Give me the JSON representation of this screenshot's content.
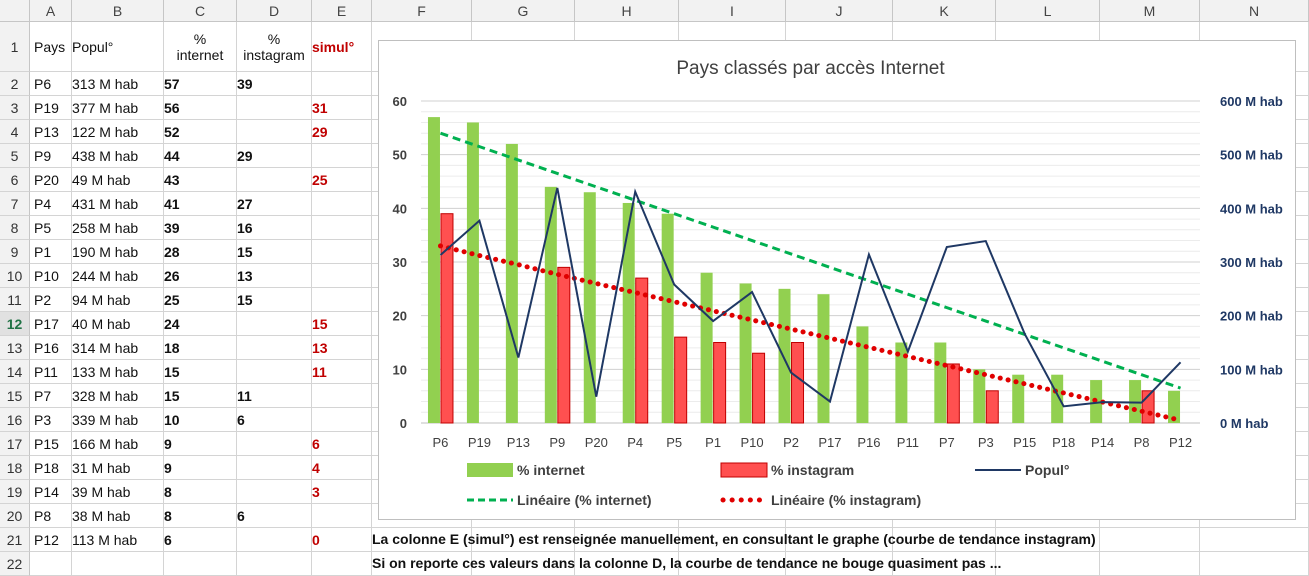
{
  "columns": [
    "A",
    "B",
    "C",
    "D",
    "E",
    "F",
    "G",
    "H",
    "I",
    "J",
    "K",
    "L",
    "M",
    "N"
  ],
  "selected_row": 12,
  "headers": {
    "A": "Pays",
    "B": "Popul°",
    "C": "%\ninternet",
    "D": "%\ninstagram",
    "E": "simul°"
  },
  "rows": [
    {
      "n": 2,
      "pays": "P6",
      "pop": "313 M hab",
      "internet": "57",
      "instagram": "39",
      "simul": ""
    },
    {
      "n": 3,
      "pays": "P19",
      "pop": "377 M hab",
      "internet": "56",
      "instagram": "",
      "simul": "31"
    },
    {
      "n": 4,
      "pays": "P13",
      "pop": "122 M hab",
      "internet": "52",
      "instagram": "",
      "simul": "29"
    },
    {
      "n": 5,
      "pays": "P9",
      "pop": "438 M hab",
      "internet": "44",
      "instagram": "29",
      "simul": ""
    },
    {
      "n": 6,
      "pays": "P20",
      "pop": "49 M hab",
      "internet": "43",
      "instagram": "",
      "simul": "25"
    },
    {
      "n": 7,
      "pays": "P4",
      "pop": "431 M hab",
      "internet": "41",
      "instagram": "27",
      "simul": ""
    },
    {
      "n": 8,
      "pays": "P5",
      "pop": "258 M hab",
      "internet": "39",
      "instagram": "16",
      "simul": ""
    },
    {
      "n": 9,
      "pays": "P1",
      "pop": "190 M hab",
      "internet": "28",
      "instagram": "15",
      "simul": ""
    },
    {
      "n": 10,
      "pays": "P10",
      "pop": "244 M hab",
      "internet": "26",
      "instagram": "13",
      "simul": ""
    },
    {
      "n": 11,
      "pays": "P2",
      "pop": "94 M hab",
      "internet": "25",
      "instagram": "15",
      "simul": ""
    },
    {
      "n": 12,
      "pays": "P17",
      "pop": "40 M hab",
      "internet": "24",
      "instagram": "",
      "simul": "15"
    },
    {
      "n": 13,
      "pays": "P16",
      "pop": "314 M hab",
      "internet": "18",
      "instagram": "",
      "simul": "13"
    },
    {
      "n": 14,
      "pays": "P11",
      "pop": "133 M hab",
      "internet": "15",
      "instagram": "",
      "simul": "11"
    },
    {
      "n": 15,
      "pays": "P7",
      "pop": "328 M hab",
      "internet": "15",
      "instagram": "11",
      "simul": ""
    },
    {
      "n": 16,
      "pays": "P3",
      "pop": "339 M hab",
      "internet": "10",
      "instagram": "6",
      "simul": ""
    },
    {
      "n": 17,
      "pays": "P15",
      "pop": "166 M hab",
      "internet": "9",
      "instagram": "",
      "simul": "6"
    },
    {
      "n": 18,
      "pays": "P18",
      "pop": "31 M hab",
      "internet": "9",
      "instagram": "",
      "simul": "4"
    },
    {
      "n": 19,
      "pays": "P14",
      "pop": "39 M hab",
      "internet": "8",
      "instagram": "",
      "simul": "3"
    },
    {
      "n": 20,
      "pays": "P8",
      "pop": "38 M hab",
      "internet": "8",
      "instagram": "6",
      "simul": ""
    },
    {
      "n": 21,
      "pays": "P12",
      "pop": "113 M hab",
      "internet": "6",
      "instagram": "",
      "simul": "0"
    },
    {
      "n": 22,
      "pays": "",
      "pop": "",
      "internet": "",
      "instagram": "",
      "simul": ""
    }
  ],
  "notes": {
    "line1": "La colonne E (simul°) est renseignée manuellement, en consultant le graphe (courbe de tendance instagram)",
    "line2": "Si on reporte ces valeurs dans la colonne D, la courbe de tendance ne bouge quasiment pas ..."
  },
  "colors": {
    "internet": "#92d050",
    "instagram": "#ff5050",
    "popul": "#1f3864",
    "trend_internet": "#00b050",
    "trend_instagram": "#e00000",
    "accent": "#217346"
  },
  "chart_data": {
    "type": "bar",
    "title": "Pays classés par accès Internet",
    "categories": [
      "P6",
      "P19",
      "P13",
      "P9",
      "P20",
      "P4",
      "P5",
      "P1",
      "P10",
      "P2",
      "P17",
      "P16",
      "P11",
      "P7",
      "P3",
      "P15",
      "P18",
      "P14",
      "P8",
      "P12"
    ],
    "series": [
      {
        "name": "% internet",
        "type": "bar",
        "axis": "left",
        "values": [
          57,
          56,
          52,
          44,
          43,
          41,
          39,
          28,
          26,
          25,
          24,
          18,
          15,
          15,
          10,
          9,
          9,
          8,
          8,
          6
        ]
      },
      {
        "name": "% instagram",
        "type": "bar",
        "axis": "left",
        "values": [
          39,
          null,
          null,
          29,
          null,
          27,
          16,
          15,
          13,
          15,
          null,
          null,
          null,
          11,
          6,
          null,
          null,
          null,
          6,
          null
        ]
      },
      {
        "name": "Popul°",
        "type": "line",
        "axis": "right",
        "values": [
          313,
          377,
          122,
          438,
          49,
          431,
          258,
          190,
          244,
          94,
          40,
          314,
          133,
          328,
          339,
          166,
          31,
          39,
          38,
          113
        ]
      },
      {
        "name": "Linéaire (% internet)",
        "type": "trend",
        "values": [
          54,
          51.5,
          49,
          46.5,
          44,
          41.5,
          39,
          36.5,
          34,
          31.5,
          29,
          26.5,
          24,
          21.5,
          19,
          16.5,
          14,
          11.5,
          9,
          6.5
        ]
      },
      {
        "name": "Linéaire (% instagram)",
        "type": "trend",
        "values": [
          33,
          31.2,
          29.5,
          27.7,
          26,
          24.3,
          22.6,
          20.9,
          19.2,
          17.5,
          15.8,
          14.1,
          12.4,
          10.7,
          9,
          7.3,
          5.6,
          3.9,
          2.2,
          0.5
        ]
      }
    ],
    "ylim_left": [
      0,
      60
    ],
    "yticks_left": [
      "0",
      "10",
      "20",
      "30",
      "40",
      "50",
      "60"
    ],
    "ylim_right": [
      0,
      600
    ],
    "yticks_right": [
      "0 M hab",
      "100 M hab",
      "200 M hab",
      "300 M hab",
      "400 M hab",
      "500 M hab",
      "600 M hab"
    ],
    "grid": true,
    "legend_position": "bottom",
    "legend": [
      "% internet",
      "% instagram",
      "Popul°",
      "Linéaire (% internet)",
      "Linéaire (% instagram)"
    ]
  }
}
